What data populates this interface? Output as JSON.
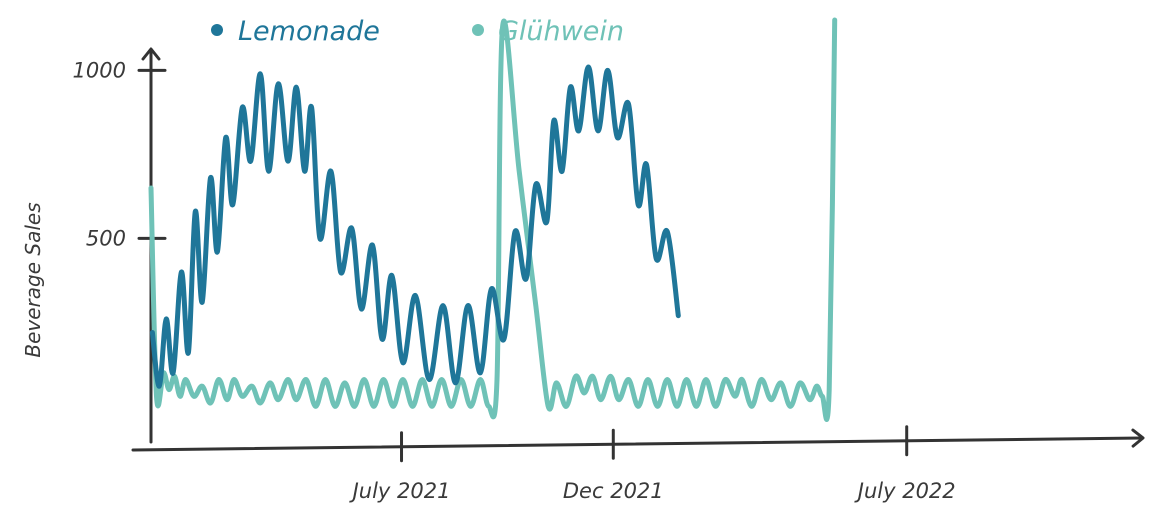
{
  "chart_data": {
    "type": "line",
    "title": "",
    "xlabel": "",
    "ylabel": "Beverage Sales",
    "ylim": [
      -100,
      1150
    ],
    "xlim": [
      "2021-01-01",
      "2022-12-31"
    ],
    "x_ticks": [
      {
        "date": "2021-07-01",
        "label": "July 2021"
      },
      {
        "date": "2021-12-01",
        "label": "Dec 2021"
      },
      {
        "date": "2022-07-01",
        "label": "July 2022"
      }
    ],
    "y_ticks": [
      {
        "value": 500,
        "label": "500"
      },
      {
        "value": 1000,
        "label": "1000"
      }
    ],
    "legend": {
      "placement": "top-left"
    },
    "grid": false,
    "series": [
      {
        "name": "Lemonade",
        "color": "#1f7699",
        "points": [
          [
            "2021-01-02",
            220
          ],
          [
            "2021-01-07",
            60
          ],
          [
            "2021-01-12",
            260
          ],
          [
            "2021-01-17",
            100
          ],
          [
            "2021-01-23",
            400
          ],
          [
            "2021-01-28",
            160
          ],
          [
            "2021-02-02",
            580
          ],
          [
            "2021-02-07",
            310
          ],
          [
            "2021-02-13",
            680
          ],
          [
            "2021-02-18",
            460
          ],
          [
            "2021-02-24",
            800
          ],
          [
            "2021-03-01",
            600
          ],
          [
            "2021-03-08",
            890
          ],
          [
            "2021-03-14",
            730
          ],
          [
            "2021-03-21",
            990
          ],
          [
            "2021-03-27",
            700
          ],
          [
            "2021-04-03",
            960
          ],
          [
            "2021-04-10",
            730
          ],
          [
            "2021-04-16",
            950
          ],
          [
            "2021-04-22",
            700
          ],
          [
            "2021-04-27",
            890
          ],
          [
            "2021-05-03",
            500
          ],
          [
            "2021-05-11",
            700
          ],
          [
            "2021-05-18",
            400
          ],
          [
            "2021-05-26",
            530
          ],
          [
            "2021-06-02",
            290
          ],
          [
            "2021-06-10",
            480
          ],
          [
            "2021-06-17",
            200
          ],
          [
            "2021-06-24",
            390
          ],
          [
            "2021-07-02",
            130
          ],
          [
            "2021-07-11",
            330
          ],
          [
            "2021-07-21",
            80
          ],
          [
            "2021-07-31",
            300
          ],
          [
            "2021-08-09",
            70
          ],
          [
            "2021-08-18",
            300
          ],
          [
            "2021-08-27",
            100
          ],
          [
            "2021-09-04",
            350
          ],
          [
            "2021-09-13",
            200
          ],
          [
            "2021-09-21",
            520
          ],
          [
            "2021-09-29",
            380
          ],
          [
            "2021-10-06",
            660
          ],
          [
            "2021-10-14",
            550
          ],
          [
            "2021-10-19",
            850
          ],
          [
            "2021-10-25",
            700
          ],
          [
            "2021-10-31",
            950
          ],
          [
            "2021-11-06",
            820
          ],
          [
            "2021-11-13",
            1010
          ],
          [
            "2021-11-20",
            820
          ],
          [
            "2021-11-27",
            1000
          ],
          [
            "2021-12-04",
            800
          ],
          [
            "2021-12-12",
            900
          ],
          [
            "2021-12-19",
            600
          ],
          [
            "2021-12-25",
            720
          ],
          [
            "2022-01-01",
            440
          ],
          [
            "2022-01-09",
            520
          ],
          [
            "2022-01-17",
            270
          ]
        ]
      },
      {
        "name": "Glühwein",
        "color": "#6fc2b7",
        "points": [
          [
            "2021-01-01",
            650
          ],
          [
            "2021-01-05",
            30
          ],
          [
            "2021-01-10",
            100
          ],
          [
            "2021-01-14",
            50
          ],
          [
            "2021-01-18",
            90
          ],
          [
            "2021-01-22",
            30
          ],
          [
            "2021-01-26",
            80
          ],
          [
            "2021-02-01",
            30
          ],
          [
            "2021-02-07",
            60
          ],
          [
            "2021-02-13",
            10
          ],
          [
            "2021-02-19",
            80
          ],
          [
            "2021-02-25",
            20
          ],
          [
            "2021-03-02",
            80
          ],
          [
            "2021-03-08",
            30
          ],
          [
            "2021-03-15",
            60
          ],
          [
            "2021-03-21",
            10
          ],
          [
            "2021-03-28",
            70
          ],
          [
            "2021-04-03",
            20
          ],
          [
            "2021-04-10",
            80
          ],
          [
            "2021-04-16",
            20
          ],
          [
            "2021-04-23",
            80
          ],
          [
            "2021-04-30",
            0
          ],
          [
            "2021-05-07",
            80
          ],
          [
            "2021-05-14",
            0
          ],
          [
            "2021-05-21",
            70
          ],
          [
            "2021-05-28",
            0
          ],
          [
            "2021-06-04",
            80
          ],
          [
            "2021-06-11",
            0
          ],
          [
            "2021-06-18",
            80
          ],
          [
            "2021-06-25",
            0
          ],
          [
            "2021-07-02",
            80
          ],
          [
            "2021-07-09",
            0
          ],
          [
            "2021-07-16",
            80
          ],
          [
            "2021-07-23",
            0
          ],
          [
            "2021-07-30",
            80
          ],
          [
            "2021-08-06",
            0
          ],
          [
            "2021-08-13",
            80
          ],
          [
            "2021-08-20",
            0
          ],
          [
            "2021-08-27",
            80
          ],
          [
            "2021-09-02",
            0
          ],
          [
            "2021-09-08",
            80
          ],
          [
            "2021-09-12",
            1130
          ],
          [
            "2021-09-24",
            700
          ],
          [
            "2021-10-06",
            300
          ],
          [
            "2021-10-15",
            0
          ],
          [
            "2021-10-21",
            70
          ],
          [
            "2021-10-28",
            0
          ],
          [
            "2021-11-04",
            90
          ],
          [
            "2021-11-10",
            40
          ],
          [
            "2021-11-16",
            90
          ],
          [
            "2021-11-22",
            20
          ],
          [
            "2021-11-29",
            90
          ],
          [
            "2021-12-05",
            20
          ],
          [
            "2021-12-12",
            80
          ],
          [
            "2021-12-19",
            0
          ],
          [
            "2021-12-26",
            80
          ],
          [
            "2022-01-02",
            0
          ],
          [
            "2022-01-09",
            80
          ],
          [
            "2022-01-16",
            0
          ],
          [
            "2022-01-23",
            80
          ],
          [
            "2022-01-30",
            0
          ],
          [
            "2022-02-06",
            80
          ],
          [
            "2022-02-13",
            0
          ],
          [
            "2022-02-20",
            80
          ],
          [
            "2022-02-27",
            30
          ],
          [
            "2022-03-04",
            80
          ],
          [
            "2022-03-11",
            0
          ],
          [
            "2022-03-18",
            80
          ],
          [
            "2022-03-25",
            20
          ],
          [
            "2022-04-01",
            70
          ],
          [
            "2022-04-08",
            0
          ],
          [
            "2022-04-15",
            70
          ],
          [
            "2022-04-22",
            20
          ],
          [
            "2022-04-27",
            60
          ],
          [
            "2022-05-01",
            30
          ],
          [
            "2022-05-06",
            50
          ],
          [
            "2022-05-10",
            1150
          ]
        ]
      }
    ]
  }
}
